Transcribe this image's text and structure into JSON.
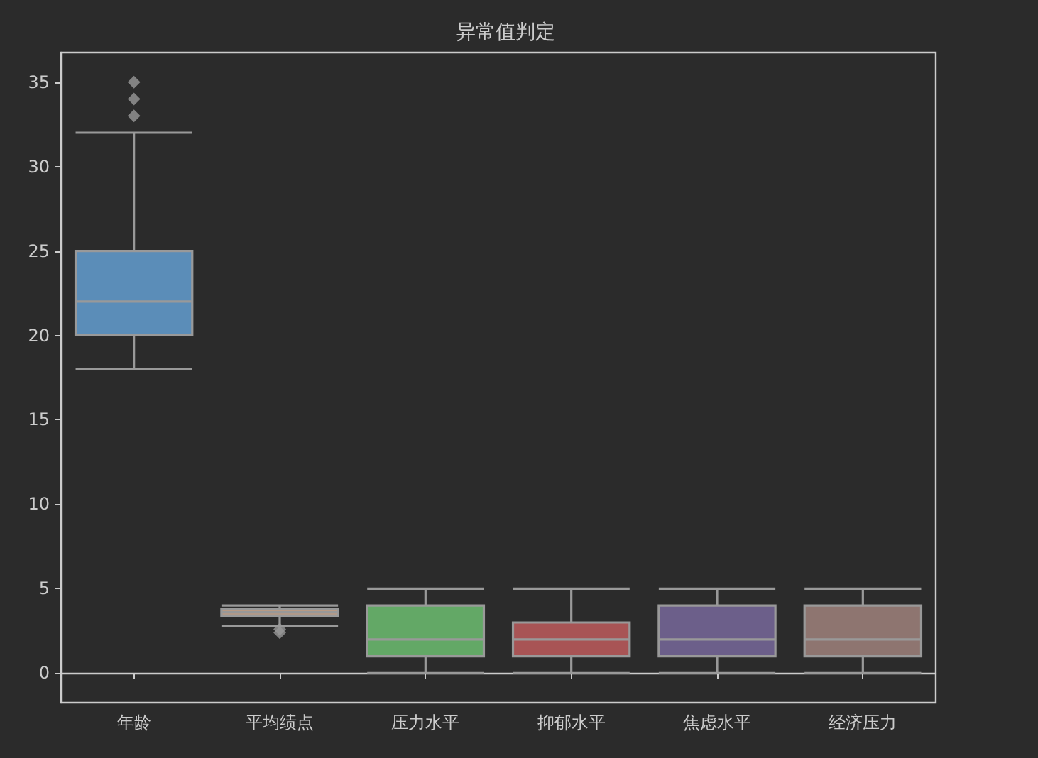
{
  "chart_data": {
    "type": "box",
    "title": "异常值判定",
    "categories": [
      "年龄",
      "平均绩点",
      "压力水平",
      "抑郁水平",
      "焦虑水平",
      "经济压力"
    ],
    "colors": [
      "#5b8db8",
      "#b89a84",
      "#63a866",
      "#a85455",
      "#6c5f8a",
      "#8e7570"
    ],
    "boxes": [
      {
        "low": 18,
        "q1": 20,
        "median": 22,
        "q3": 25,
        "high": 32,
        "outliers": [
          33,
          34,
          35
        ]
      },
      {
        "low": 2.8,
        "q1": 3.4,
        "median": 3.6,
        "q3": 3.8,
        "high": 4.0,
        "outliers": [
          2.4,
          2.6
        ]
      },
      {
        "low": 0,
        "q1": 1,
        "median": 2,
        "q3": 4,
        "high": 5
      },
      {
        "low": 0,
        "q1": 1,
        "median": 2,
        "q3": 3,
        "high": 5
      },
      {
        "low": 0,
        "q1": 1,
        "median": 2,
        "q3": 4,
        "high": 5
      },
      {
        "low": 0,
        "q1": 1,
        "median": 2,
        "q3": 4,
        "high": 5
      }
    ],
    "marker": "diamond",
    "ylim": [
      -1.75,
      36.75
    ],
    "yticks": [
      0,
      5,
      10,
      15,
      20,
      25,
      30,
      35
    ]
  }
}
